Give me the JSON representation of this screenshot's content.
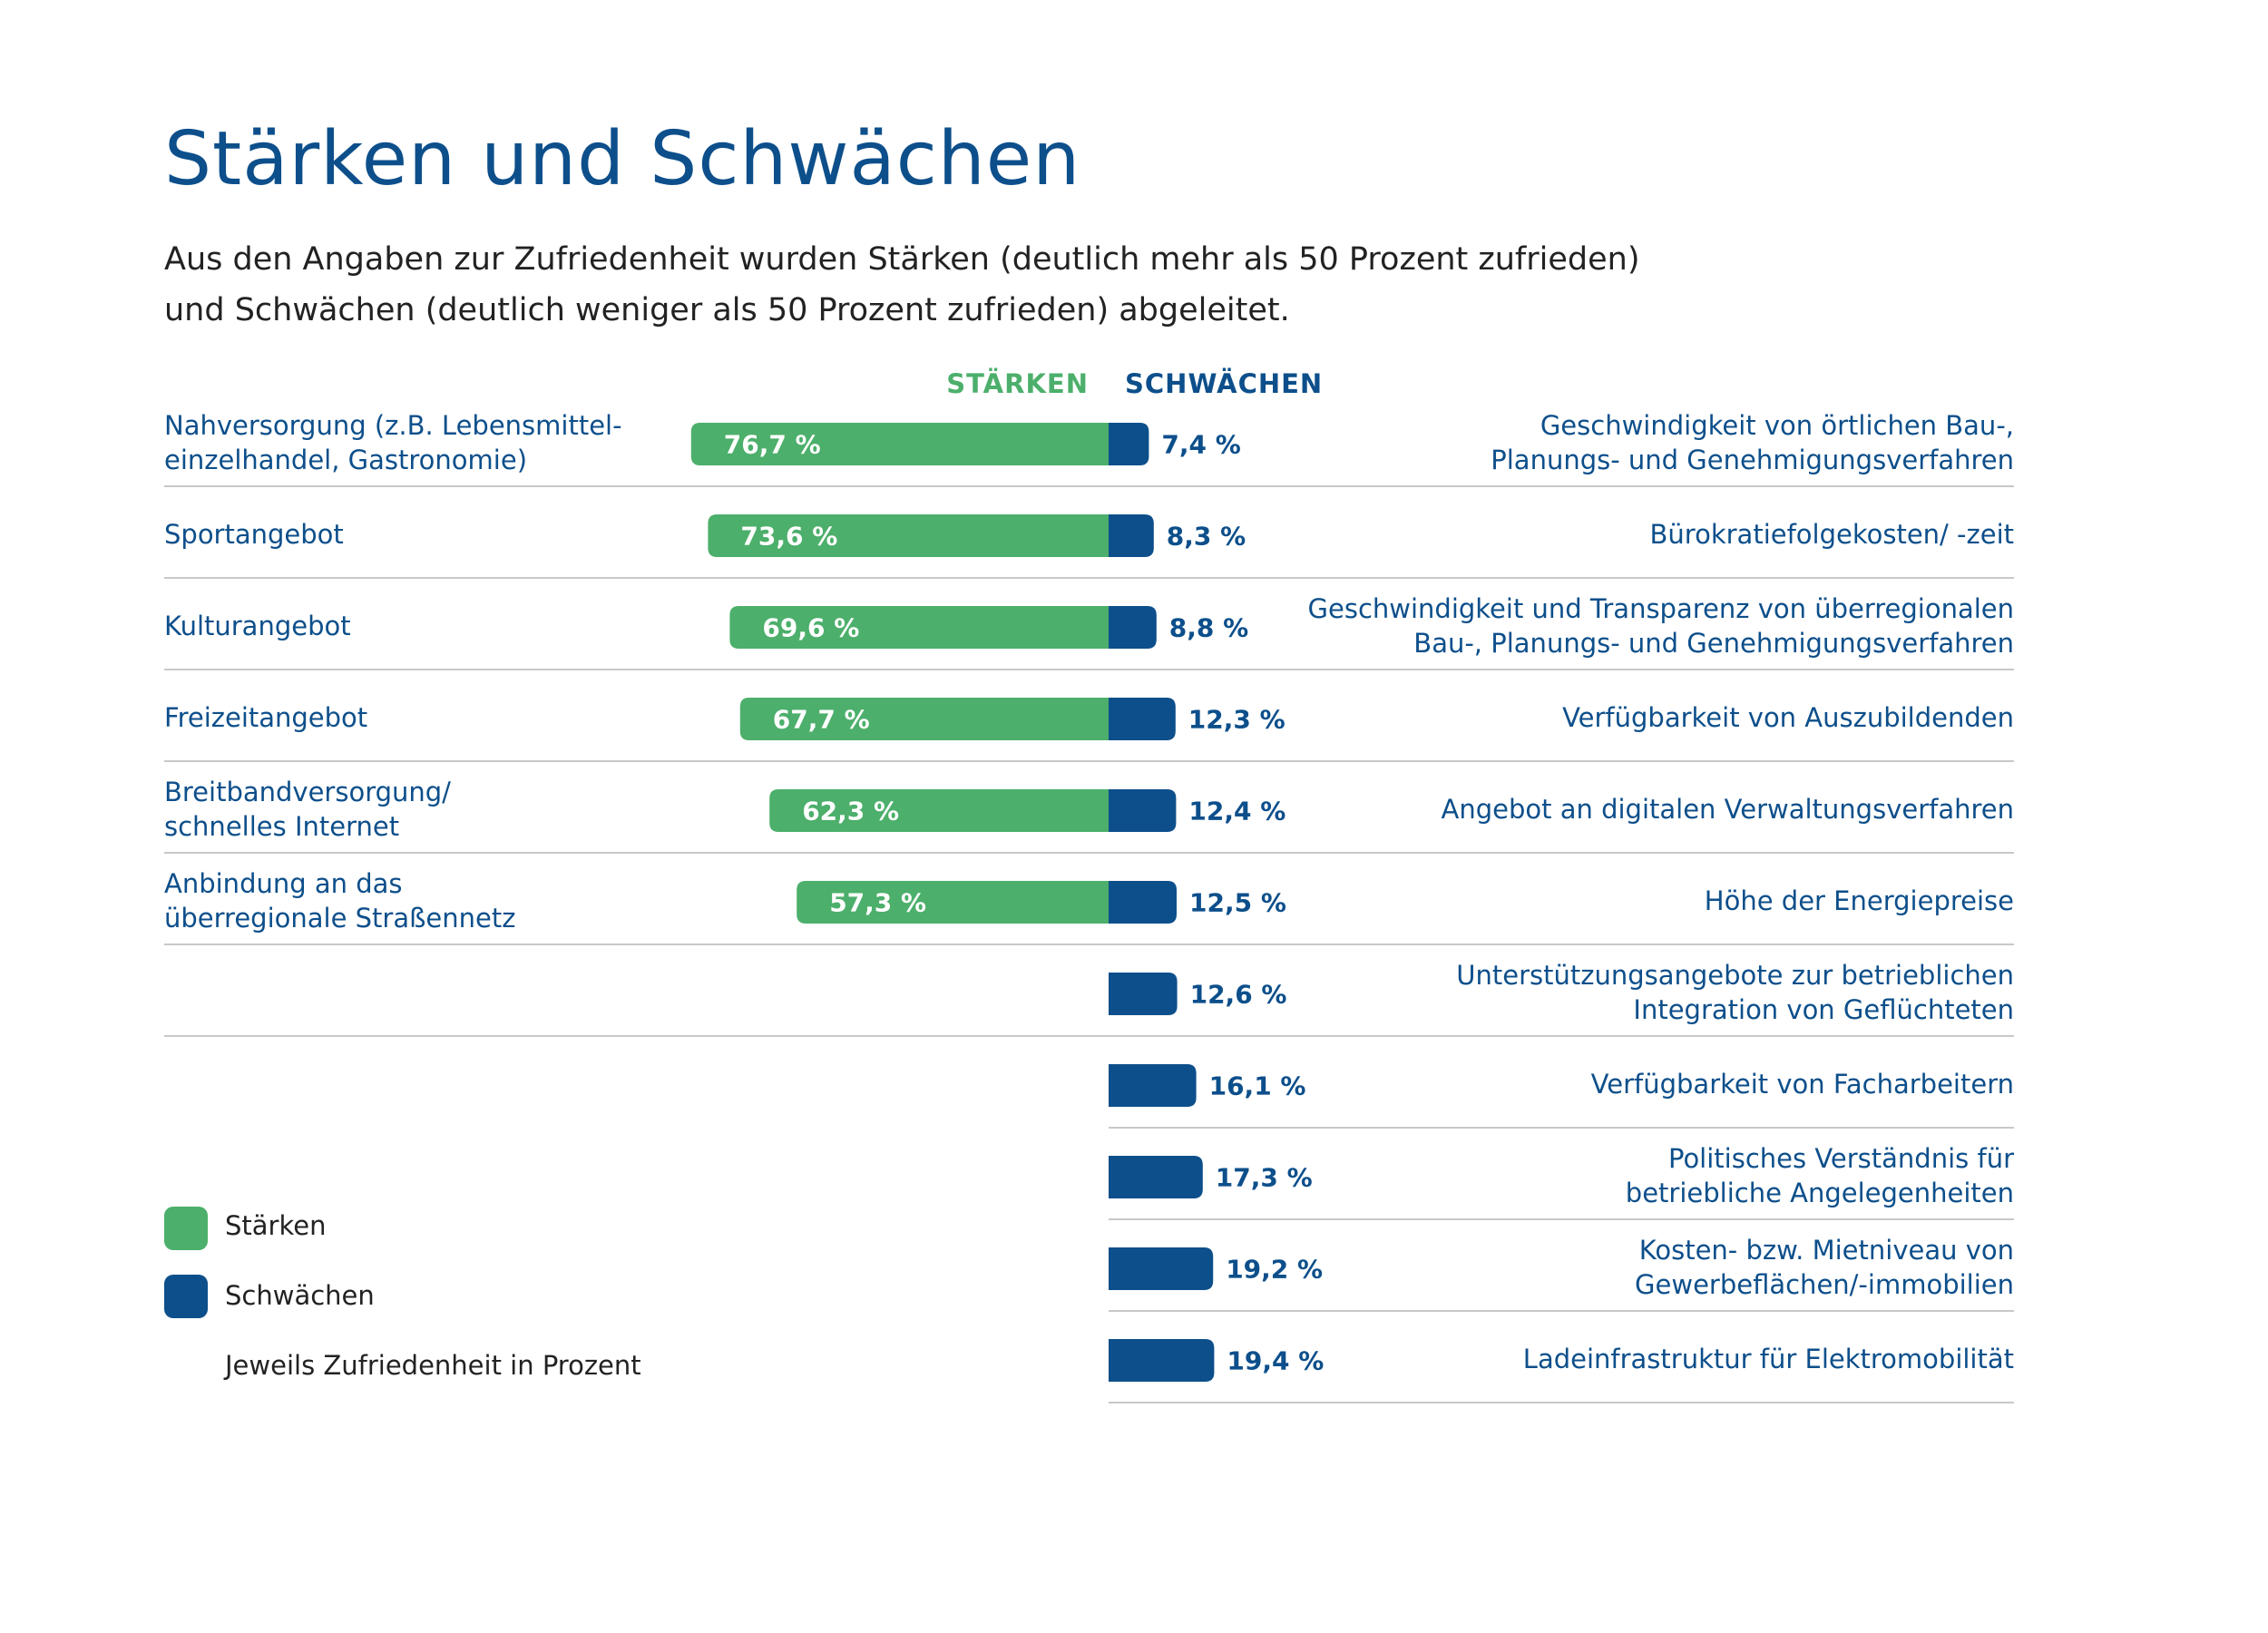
{
  "title": "Stärken und Schwächen",
  "subtitle": {
    "line1": "Aus den Angaben zur Zufriedenheit wurden Stärken (deutlich mehr als 50 Prozent zufrieden)",
    "line2": "und Schwächen (deutlich weniger als 50 Prozent zufrieden) abgeleitet."
  },
  "colors": {
    "strength": "#4caf6b",
    "weakness": "#0d4f8b",
    "text": "#0d4f8b",
    "separator": "#c8c8c8"
  },
  "chart_data": {
    "type": "bar",
    "title": "Stärken und Schwächen",
    "header_strengths": "STÄRKEN",
    "header_weaknesses": "SCHWÄCHEN",
    "value_unit": "%",
    "strengths": [
      {
        "label_lines": [
          "Nahversorgung (z.B. Lebensmittel-",
          "einzelhandel, Gastronomie)"
        ],
        "value": 76.7,
        "value_label": "76,7 %"
      },
      {
        "label_lines": [
          "Sportangebot"
        ],
        "value": 73.6,
        "value_label": "73,6 %"
      },
      {
        "label_lines": [
          "Kulturangebot"
        ],
        "value": 69.6,
        "value_label": "69,6 %"
      },
      {
        "label_lines": [
          "Freizeitangebot"
        ],
        "value": 67.7,
        "value_label": "67,7 %"
      },
      {
        "label_lines": [
          "Breitbandversorgung/",
          "schnelles Internet"
        ],
        "value": 62.3,
        "value_label": "62,3 %"
      },
      {
        "label_lines": [
          "Anbindung an das",
          "überregionale Straßennetz"
        ],
        "value": 57.3,
        "value_label": "57,3 %"
      }
    ],
    "weaknesses": [
      {
        "label_lines": [
          "Geschwindigkeit von örtlichen Bau-,",
          "Planungs- und Genehmigungsverfahren"
        ],
        "value": 7.4,
        "value_label": "7,4 %"
      },
      {
        "label_lines": [
          "Bürokratiefolgekosten/ -zeit"
        ],
        "value": 8.3,
        "value_label": "8,3 %"
      },
      {
        "label_lines": [
          "Geschwindigkeit und Transparenz von überregionalen",
          "Bau-, Planungs- und Genehmigungsverfahren"
        ],
        "value": 8.8,
        "value_label": "8,8 %"
      },
      {
        "label_lines": [
          "Verfügbarkeit von Auszubildenden"
        ],
        "value": 12.3,
        "value_label": "12,3 %"
      },
      {
        "label_lines": [
          "Angebot an digitalen Verwaltungsverfahren"
        ],
        "value": 12.4,
        "value_label": "12,4 %"
      },
      {
        "label_lines": [
          "Höhe der Energiepreise"
        ],
        "value": 12.5,
        "value_label": "12,5 %"
      },
      {
        "label_lines": [
          "Unterstützungsangebote zur betrieblichen",
          "Integration von Geflüchteten"
        ],
        "value": 12.6,
        "value_label": "12,6 %"
      },
      {
        "label_lines": [
          "Verfügbarkeit von Facharbeitern"
        ],
        "value": 16.1,
        "value_label": "16,1 %"
      },
      {
        "label_lines": [
          "Politisches Verständnis für",
          "betriebliche Angelegenheiten"
        ],
        "value": 17.3,
        "value_label": "17,3 %"
      },
      {
        "label_lines": [
          "Kosten- bzw. Mietniveau von",
          "Gewerbeflächen/-immobilien"
        ],
        "value": 19.2,
        "value_label": "19,2 %"
      },
      {
        "label_lines": [
          "Ladeinfrastruktur für Elektromobilität"
        ],
        "value": 19.4,
        "value_label": "19,4 %"
      }
    ]
  },
  "legend": {
    "strengths": "Stärken",
    "weaknesses": "Schwächen",
    "note": "Jeweils Zufriedenheit in Prozent"
  }
}
